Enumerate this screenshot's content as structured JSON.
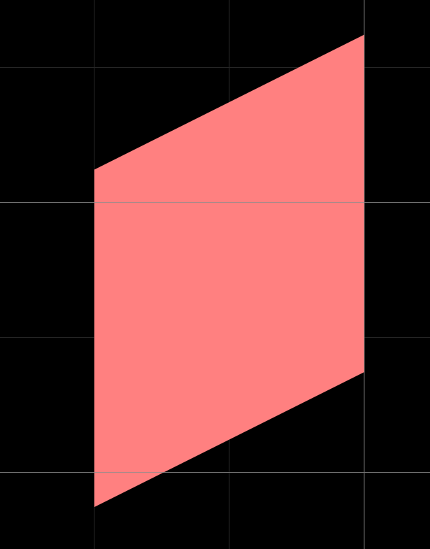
{
  "canvas": {
    "background": "#000000"
  },
  "grid": {
    "minor_color": "#262626",
    "major_color": "#8c8c8c",
    "minor_x": [
      0,
      1,
      2,
      3
    ],
    "major_x": [
      2
    ],
    "minor_y": [
      0,
      1,
      2,
      3
    ],
    "major_y": [
      1,
      3
    ]
  },
  "shape": {
    "name": "parallelogram",
    "fill": "#ff8080",
    "vertices": [
      [
        0,
        0.0
      ],
      [
        2,
        -1.0
      ],
      [
        2,
        1.5
      ],
      [
        0,
        2.5
      ]
    ]
  }
}
